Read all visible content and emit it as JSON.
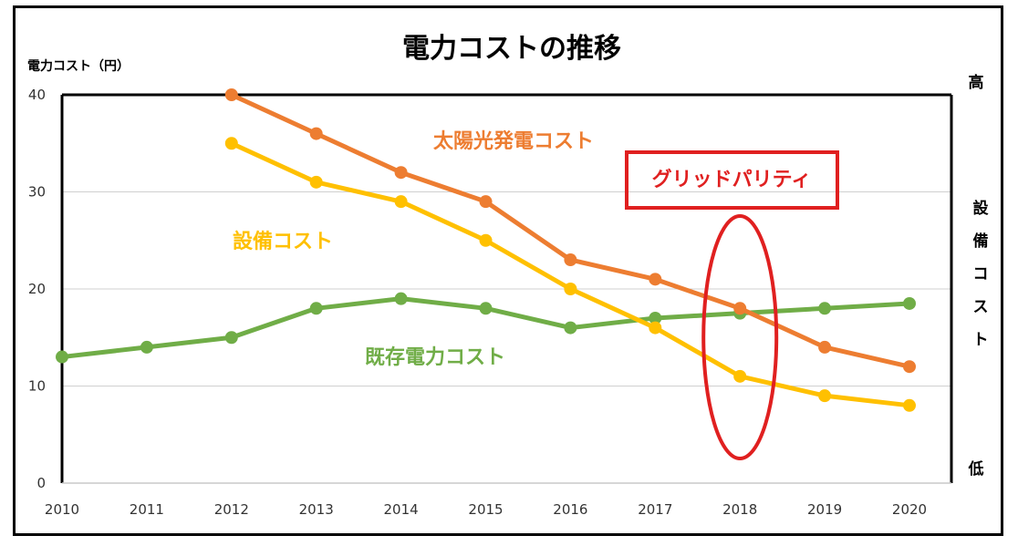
{
  "chart_data": {
    "type": "line",
    "title": "電力コストの推移",
    "ylabel": "電力コスト（円）",
    "xlabel": "",
    "x": [
      "2010",
      "2011",
      "2012",
      "2013",
      "2014",
      "2015",
      "2016",
      "2017",
      "2018",
      "2019",
      "2020"
    ],
    "ylim": [
      0,
      40
    ],
    "yticks": [
      0,
      10,
      20,
      30,
      40
    ],
    "grid": true,
    "series": [
      {
        "name": "太陽光発電コスト",
        "color": "#ED7D31",
        "values": [
          null,
          null,
          40,
          36,
          32,
          29,
          23,
          21,
          18,
          14,
          12
        ]
      },
      {
        "name": "設備コスト",
        "color": "#FFC000",
        "values": [
          null,
          null,
          35,
          31,
          29,
          25,
          20,
          16,
          11,
          9,
          8
        ]
      },
      {
        "name": "既存電力コスト",
        "color": "#70AD47",
        "values": [
          13,
          14,
          15,
          18,
          19,
          18,
          16,
          17,
          17.5,
          18,
          18.5
        ]
      }
    ],
    "secondary_axis": {
      "title": "設備コスト",
      "top": "高",
      "bottom": "低"
    },
    "annotations": {
      "grid_parity": {
        "text": "グリッドパリティ",
        "color": "#E02020",
        "at_x": "2018"
      }
    }
  }
}
